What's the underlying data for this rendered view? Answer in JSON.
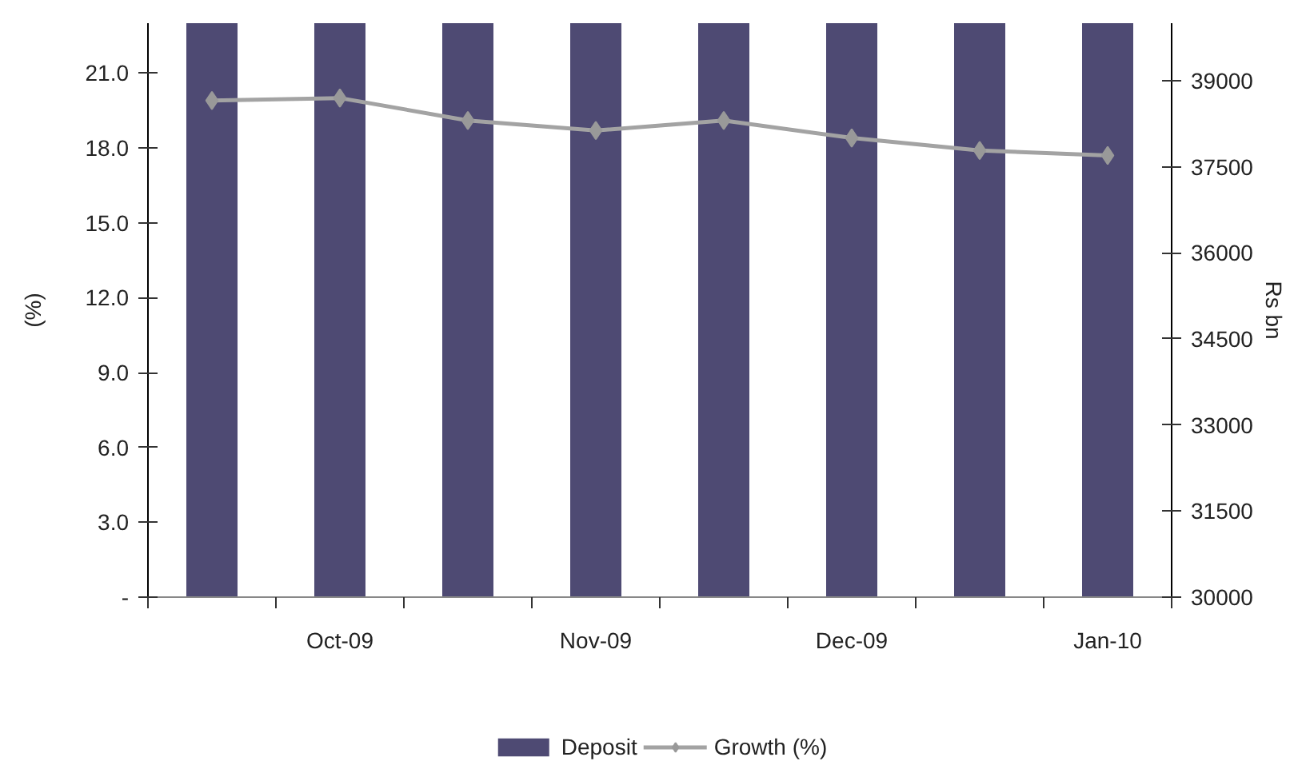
{
  "chart_data": {
    "type": "bar",
    "categories": [
      null,
      "Oct-09",
      null,
      "Nov-09",
      null,
      "Dec-09",
      null,
      "Jan-10"
    ],
    "ylabel": "(%)",
    "y2label": "Rs bn",
    "ylim": [
      0,
      23
    ],
    "yticks": [
      {
        "value": 0,
        "label": "-"
      },
      {
        "value": 3,
        "label": "3.0"
      },
      {
        "value": 6,
        "label": "6.0"
      },
      {
        "value": 9,
        "label": "9.0"
      },
      {
        "value": 12,
        "label": "12.0"
      },
      {
        "value": 15,
        "label": "15.0"
      },
      {
        "value": 18,
        "label": "18.0"
      },
      {
        "value": 21,
        "label": "21.0"
      }
    ],
    "y2lim": [
      30000,
      40000
    ],
    "y2ticks": [
      30000,
      31500,
      33000,
      34500,
      36000,
      37500,
      39000
    ],
    "series": [
      {
        "name": "Deposit",
        "axis": "y2",
        "color": "#4e4a73",
        "values": [
          40000,
          40000,
          40000,
          40000,
          40000,
          40000,
          40000,
          40000
        ]
      },
      {
        "name": "Growth (%)",
        "type": "line",
        "axis": "y",
        "color": "#a3a3a3",
        "values": [
          19.9,
          20.0,
          19.1,
          18.7,
          19.1,
          18.4,
          17.9,
          17.7
        ]
      }
    ],
    "marker": "diamond",
    "legend": "bottom",
    "grid": false
  }
}
